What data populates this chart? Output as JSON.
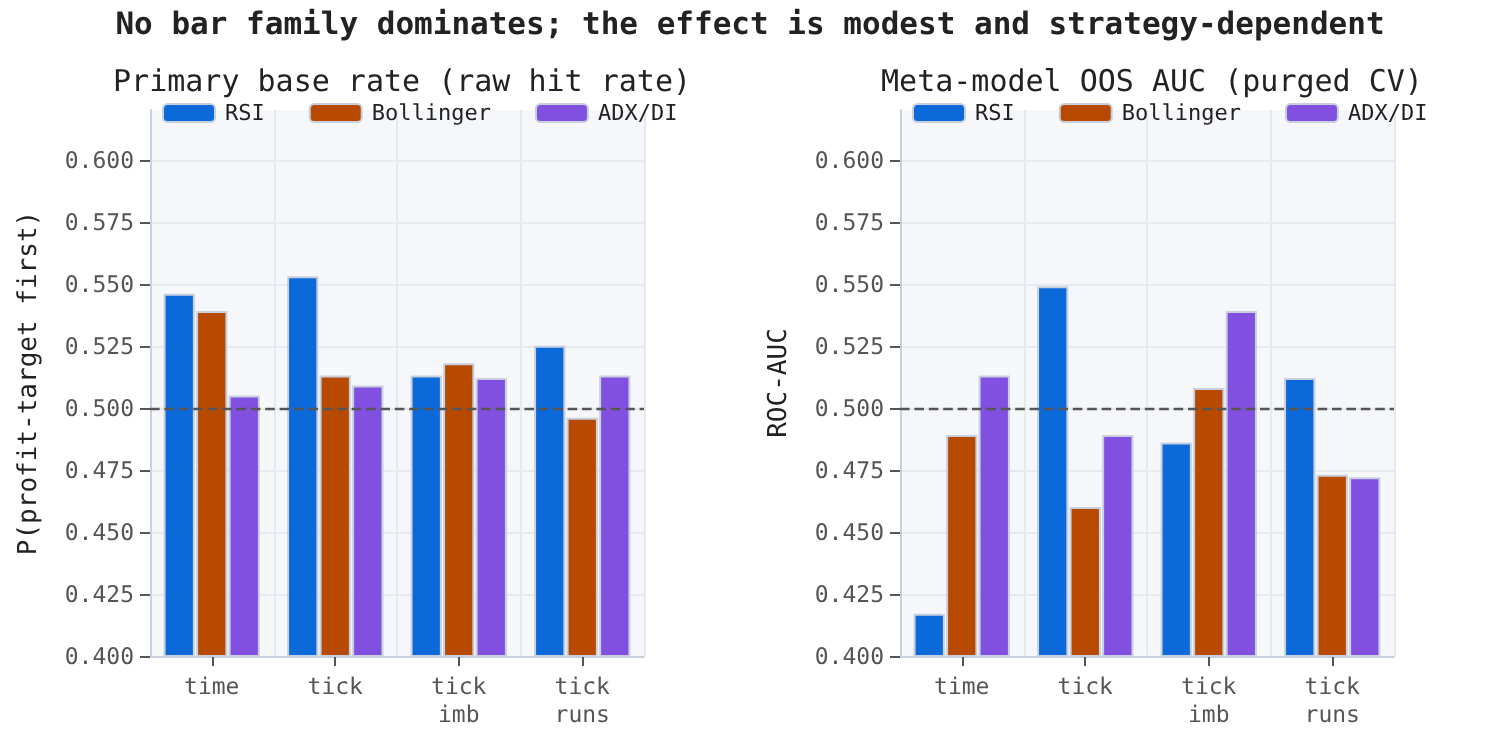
{
  "chart_data": [
    {
      "type": "bar",
      "title": "Primary base rate (raw hit rate)",
      "ylabel": "P(profit-target first)",
      "annotations": [
        "No bar family dominates; the effect is modest and strategy-dependent"
      ],
      "categories": [
        "time",
        "tick",
        "tick\nimb",
        "tick\nruns"
      ],
      "series": [
        {
          "name": "RSI",
          "color": "#0b69d9",
          "values": [
            0.546,
            0.553,
            0.513,
            0.525
          ]
        },
        {
          "name": "Bollinger",
          "color": "#b84a00",
          "values": [
            0.539,
            0.513,
            0.518,
            0.496
          ]
        },
        {
          "name": "ADX/DI",
          "color": "#8150e0",
          "values": [
            0.505,
            0.509,
            0.512,
            0.513
          ]
        }
      ],
      "ylim": [
        0.4,
        0.62
      ],
      "yticks": [
        {
          "value": 0.4,
          "label": "0.400"
        },
        {
          "value": 0.425,
          "label": "0.425"
        },
        {
          "value": 0.45,
          "label": "0.450"
        },
        {
          "value": 0.475,
          "label": "0.475"
        },
        {
          "value": 0.5,
          "label": "0.500"
        },
        {
          "value": 0.525,
          "label": "0.525"
        },
        {
          "value": 0.55,
          "label": "0.550"
        },
        {
          "value": 0.575,
          "label": "0.575"
        },
        {
          "value": 0.6,
          "label": "0.600"
        }
      ],
      "ref_lines": [
        {
          "axis": "y",
          "value": 0.5,
          "color": "#555555",
          "line_style": "dashed"
        }
      ],
      "grid": true,
      "legend": "top"
    },
    {
      "type": "bar",
      "title": "Meta-model OOS AUC (purged CV)",
      "ylabel": "ROC-AUC",
      "categories": [
        "time",
        "tick",
        "tick\nimb",
        "tick\nruns"
      ],
      "series": [
        {
          "name": "RSI",
          "color": "#0b69d9",
          "values": [
            0.417,
            0.549,
            0.486,
            0.512
          ]
        },
        {
          "name": "Bollinger",
          "color": "#b84a00",
          "values": [
            0.489,
            0.46,
            0.508,
            0.473
          ]
        },
        {
          "name": "ADX/DI",
          "color": "#8150e0",
          "values": [
            0.513,
            0.489,
            0.539,
            0.472
          ]
        }
      ],
      "ylim": [
        0.4,
        0.62
      ],
      "yticks": [
        {
          "value": 0.4,
          "label": "0.400"
        },
        {
          "value": 0.425,
          "label": "0.425"
        },
        {
          "value": 0.45,
          "label": "0.450"
        },
        {
          "value": 0.475,
          "label": "0.475"
        },
        {
          "value": 0.5,
          "label": "0.500"
        },
        {
          "value": 0.525,
          "label": "0.525"
        },
        {
          "value": 0.55,
          "label": "0.550"
        },
        {
          "value": 0.575,
          "label": "0.575"
        },
        {
          "value": 0.6,
          "label": "0.600"
        }
      ],
      "ref_lines": [
        {
          "axis": "y",
          "value": 0.5,
          "color": "#555555",
          "line_style": "dashed"
        }
      ],
      "grid": true,
      "legend": "top"
    }
  ]
}
